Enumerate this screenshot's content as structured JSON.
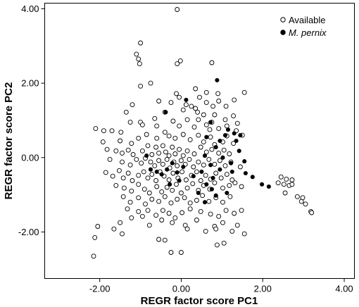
{
  "chart_data": {
    "type": "scatter",
    "xlabel": "REGR factor score PC1",
    "ylabel": "REGR factor score PC2",
    "xlim": [
      -3.35,
      4.25
    ],
    "ylim": [
      -3.25,
      4.15
    ],
    "x_ticks": [
      -2,
      0,
      2,
      4
    ],
    "y_ticks": [
      -2,
      0,
      2,
      4
    ],
    "x_tick_labels": [
      "-2.00",
      "0.00",
      "2.00",
      "4.00"
    ],
    "y_tick_labels": [
      "-2.00",
      "0.00",
      "2.00",
      "4.00"
    ],
    "grid": false,
    "legend_position": "top-right",
    "series": [
      {
        "name": "Available",
        "marker": "open-circle",
        "color": "#000000",
        "points": [
          [
            -0.1,
            3.98
          ],
          [
            -1.0,
            3.08
          ],
          [
            -1.1,
            2.78
          ],
          [
            -1.05,
            2.65
          ],
          [
            -1.02,
            2.52
          ],
          [
            -0.02,
            2.6
          ],
          [
            -0.1,
            2.52
          ],
          [
            0.75,
            2.55
          ],
          [
            -0.75,
            2.0
          ],
          [
            -1.0,
            1.92
          ],
          [
            -0.12,
            1.72
          ],
          [
            -0.05,
            1.62
          ],
          [
            0.35,
            1.85
          ],
          [
            0.45,
            1.62
          ],
          [
            0.62,
            1.75
          ],
          [
            0.9,
            1.72
          ],
          [
            1.55,
            1.75
          ],
          [
            -1.2,
            1.42
          ],
          [
            -0.55,
            1.52
          ],
          [
            -0.4,
            1.22
          ],
          [
            -0.25,
            1.48
          ],
          [
            0.05,
            1.28
          ],
          [
            0.12,
            1.42
          ],
          [
            0.25,
            1.38
          ],
          [
            0.4,
            1.22
          ],
          [
            0.62,
            1.48
          ],
          [
            0.78,
            1.38
          ],
          [
            0.92,
            1.52
          ],
          [
            1.1,
            1.38
          ],
          [
            1.3,
            1.55
          ],
          [
            0.42,
            1.02
          ],
          [
            0.55,
            1.15
          ],
          [
            0.35,
            1.32
          ],
          [
            0.82,
            1.15
          ],
          [
            1.08,
            1.02
          ],
          [
            1.28,
            1.12
          ],
          [
            1.38,
            0.92
          ],
          [
            0.75,
            0.95
          ],
          [
            -1.35,
            1.22
          ],
          [
            -1.25,
            0.95
          ],
          [
            -1.0,
            0.95
          ],
          [
            -0.95,
            0.88
          ],
          [
            -0.65,
            1.05
          ],
          [
            -0.6,
            0.85
          ],
          [
            -0.2,
            0.98
          ],
          [
            -0.05,
            0.85
          ],
          [
            0.15,
            1.02
          ],
          [
            0.32,
            0.82
          ],
          [
            0.62,
            0.88
          ],
          [
            0.7,
            0.75
          ],
          [
            0.92,
            0.78
          ],
          [
            1.12,
            0.85
          ],
          [
            1.35,
            0.72
          ],
          [
            1.5,
            0.6
          ],
          [
            -2.1,
            0.78
          ],
          [
            -1.9,
            0.72
          ],
          [
            -1.7,
            0.72
          ],
          [
            -1.48,
            0.68
          ],
          [
            -1.5,
            0.45
          ],
          [
            -1.22,
            0.38
          ],
          [
            -1.05,
            0.52
          ],
          [
            -0.85,
            0.62
          ],
          [
            -0.6,
            0.52
          ],
          [
            -0.4,
            0.68
          ],
          [
            -0.3,
            0.58
          ],
          [
            -0.15,
            0.52
          ],
          [
            0.05,
            0.62
          ],
          [
            0.22,
            0.48
          ],
          [
            0.42,
            0.6
          ],
          [
            0.55,
            0.42
          ],
          [
            0.72,
            0.55
          ],
          [
            0.82,
            0.35
          ],
          [
            1.02,
            0.42
          ],
          [
            1.12,
            0.58
          ],
          [
            1.28,
            0.38
          ],
          [
            -1.92,
            0.42
          ],
          [
            -1.82,
            0.22
          ],
          [
            -1.6,
            0.18
          ],
          [
            -1.45,
            0.12
          ],
          [
            -1.3,
            0.2
          ],
          [
            -1.18,
            0.08
          ],
          [
            -0.95,
            0.18
          ],
          [
            -0.82,
            0.32
          ],
          [
            -0.72,
            0.08
          ],
          [
            -0.62,
            0.28
          ],
          [
            -0.55,
            0.12
          ],
          [
            -0.45,
            0.32
          ],
          [
            -0.38,
            0.15
          ],
          [
            -0.3,
            0.05
          ],
          [
            -0.22,
            0.28
          ],
          [
            -0.15,
            0.1
          ],
          [
            -0.05,
            0.22
          ],
          [
            0.05,
            0.05
          ],
          [
            0.15,
            0.18
          ],
          [
            0.32,
            0.1
          ],
          [
            0.48,
            0.28
          ],
          [
            0.62,
            0.15
          ],
          [
            0.75,
            0.22
          ],
          [
            0.92,
            0.12
          ],
          [
            1.05,
            0.2
          ],
          [
            1.18,
            0.1
          ],
          [
            -1.75,
            -0.05
          ],
          [
            -1.45,
            -0.12
          ],
          [
            -1.25,
            -0.2
          ],
          [
            -1.1,
            -0.05
          ],
          [
            -0.98,
            -0.15
          ],
          [
            -0.88,
            -0.02
          ],
          [
            -0.75,
            -0.12
          ],
          [
            -0.65,
            -0.22
          ],
          [
            -0.55,
            -0.08
          ],
          [
            -0.45,
            -0.18
          ],
          [
            -0.35,
            -0.05
          ],
          [
            -0.28,
            -0.28
          ],
          [
            -0.18,
            -0.12
          ],
          [
            -0.1,
            -0.22
          ],
          [
            0.0,
            -0.08
          ],
          [
            0.1,
            -0.18
          ],
          [
            0.2,
            -0.05
          ],
          [
            0.3,
            -0.25
          ],
          [
            0.42,
            -0.12
          ],
          [
            0.55,
            -0.2
          ],
          [
            0.68,
            -0.05
          ],
          [
            0.82,
            -0.18
          ],
          [
            0.95,
            -0.08
          ],
          [
            1.08,
            -0.22
          ],
          [
            1.22,
            -0.12
          ],
          [
            1.45,
            -0.25
          ],
          [
            -1.85,
            -0.4
          ],
          [
            -1.68,
            -0.5
          ],
          [
            -1.52,
            -0.35
          ],
          [
            -1.42,
            -0.55
          ],
          [
            -1.3,
            -0.42
          ],
          [
            -1.2,
            -0.62
          ],
          [
            -1.05,
            -0.48
          ],
          [
            -0.92,
            -0.38
          ],
          [
            -0.82,
            -0.55
          ],
          [
            -0.72,
            -0.45
          ],
          [
            -0.62,
            -0.62
          ],
          [
            -0.52,
            -0.38
          ],
          [
            -0.42,
            -0.5
          ],
          [
            -0.3,
            -0.6
          ],
          [
            -0.2,
            -0.42
          ],
          [
            -0.08,
            -0.55
          ],
          [
            0.02,
            -0.38
          ],
          [
            0.12,
            -0.6
          ],
          [
            0.25,
            -0.48
          ],
          [
            0.38,
            -0.38
          ],
          [
            0.48,
            -0.62
          ],
          [
            0.6,
            -0.48
          ],
          [
            0.72,
            -0.58
          ],
          [
            0.85,
            -0.42
          ],
          [
            0.98,
            -0.55
          ],
          [
            1.12,
            -0.45
          ],
          [
            1.25,
            -0.6
          ],
          [
            -1.6,
            -0.75
          ],
          [
            -1.4,
            -0.82
          ],
          [
            -1.22,
            -0.9
          ],
          [
            -1.05,
            -0.72
          ],
          [
            -0.9,
            -0.85
          ],
          [
            -0.78,
            -0.95
          ],
          [
            -0.6,
            -0.78
          ],
          [
            -0.48,
            -0.92
          ],
          [
            -0.35,
            -0.8
          ],
          [
            -0.22,
            -0.88
          ],
          [
            -0.12,
            -0.72
          ],
          [
            0.0,
            -0.95
          ],
          [
            0.15,
            -0.82
          ],
          [
            0.28,
            -0.7
          ],
          [
            0.42,
            -0.88
          ],
          [
            0.55,
            -0.75
          ],
          [
            0.7,
            -0.85
          ],
          [
            0.82,
            -0.68
          ],
          [
            1.02,
            -0.82
          ],
          [
            1.18,
            -0.75
          ],
          [
            1.32,
            -0.68
          ],
          [
            1.48,
            -0.78
          ],
          [
            -1.42,
            -1.05
          ],
          [
            -1.25,
            -1.2
          ],
          [
            -1.05,
            -1.08
          ],
          [
            -0.88,
            -1.25
          ],
          [
            -0.72,
            -1.12
          ],
          [
            -0.55,
            -1.18
          ],
          [
            -0.4,
            -1.05
          ],
          [
            -0.25,
            -1.22
          ],
          [
            -0.1,
            -1.12
          ],
          [
            0.08,
            -1.08
          ],
          [
            0.22,
            -1.22
          ],
          [
            0.38,
            -1.15
          ],
          [
            0.52,
            -1.02
          ],
          [
            0.68,
            -1.18
          ],
          [
            0.85,
            -1.08
          ],
          [
            1.02,
            -1.2
          ],
          [
            1.2,
            -1.05
          ],
          [
            -1.32,
            -1.38
          ],
          [
            -1.05,
            -1.45
          ],
          [
            -0.82,
            -1.42
          ],
          [
            -0.62,
            -1.55
          ],
          [
            -0.45,
            -1.42
          ],
          [
            -0.3,
            -1.5
          ],
          [
            -0.15,
            -1.62
          ],
          [
            0.02,
            -1.48
          ],
          [
            0.22,
            -1.38
          ],
          [
            0.48,
            -1.45
          ],
          [
            0.72,
            -1.52
          ],
          [
            0.92,
            -1.58
          ],
          [
            1.1,
            -1.42
          ],
          [
            1.3,
            -1.5
          ],
          [
            1.48,
            -1.42
          ],
          [
            -1.5,
            -1.75
          ],
          [
            -1.22,
            -1.62
          ],
          [
            -0.95,
            -1.58
          ],
          [
            -0.78,
            -1.82
          ],
          [
            -0.48,
            -1.68
          ],
          [
            -0.22,
            -1.75
          ],
          [
            0.1,
            -1.82
          ],
          [
            0.38,
            -1.68
          ],
          [
            0.82,
            -1.85
          ],
          [
            1.02,
            -1.75
          ],
          [
            1.38,
            -1.82
          ],
          [
            -2.05,
            -1.85
          ],
          [
            -2.12,
            -2.15
          ],
          [
            -1.65,
            -1.92
          ],
          [
            -1.45,
            -2.05
          ],
          [
            -0.55,
            -2.2
          ],
          [
            -0.4,
            -2.22
          ],
          [
            0.15,
            -1.92
          ],
          [
            0.6,
            -1.98
          ],
          [
            0.85,
            -1.92
          ],
          [
            1.25,
            -1.98
          ],
          [
            1.55,
            -2.05
          ],
          [
            -2.15,
            -2.65
          ],
          [
            -0.25,
            -2.55
          ],
          [
            0.0,
            -2.55
          ],
          [
            0.88,
            -2.35
          ],
          [
            1.05,
            -2.3
          ],
          [
            2.45,
            -0.52
          ],
          [
            2.58,
            -0.58
          ],
          [
            2.72,
            -0.6
          ],
          [
            2.38,
            -0.68
          ],
          [
            2.52,
            -0.72
          ],
          [
            2.65,
            -0.75
          ],
          [
            2.72,
            -0.72
          ],
          [
            2.55,
            -0.95
          ],
          [
            2.85,
            -1.05
          ],
          [
            2.95,
            -1.18
          ],
          [
            3.05,
            -1.25
          ],
          [
            2.98,
            -1.08
          ],
          [
            3.18,
            -1.45
          ],
          [
            3.2,
            -1.48
          ]
        ]
      },
      {
        "name": "M. pernix",
        "marker": "filled-circle",
        "color": "#000000",
        "points": [
          [
            0.88,
            2.08
          ],
          [
            0.12,
            1.55
          ],
          [
            -0.38,
            1.22
          ],
          [
            0.72,
            0.95
          ],
          [
            0.62,
            0.55
          ],
          [
            0.85,
            0.28
          ],
          [
            1.15,
            0.75
          ],
          [
            1.3,
            0.65
          ],
          [
            1.45,
            0.6
          ],
          [
            1.08,
            0.6
          ],
          [
            0.95,
            0.45
          ],
          [
            1.35,
            0.45
          ],
          [
            0.58,
            0.05
          ],
          [
            1.42,
            0.18
          ],
          [
            1.02,
            0.0
          ],
          [
            1.22,
            -0.15
          ],
          [
            1.55,
            -0.1
          ],
          [
            0.72,
            -0.2
          ],
          [
            0.95,
            -0.32
          ],
          [
            -0.85,
            0.05
          ],
          [
            -0.75,
            -0.32
          ],
          [
            -0.6,
            -0.38
          ],
          [
            -0.48,
            -0.45
          ],
          [
            -0.35,
            -0.32
          ],
          [
            -0.22,
            -0.15
          ],
          [
            -0.1,
            -0.4
          ],
          [
            0.05,
            -0.25
          ],
          [
            -0.05,
            -0.62
          ],
          [
            -0.28,
            -0.72
          ],
          [
            0.3,
            -0.5
          ],
          [
            0.5,
            -0.38
          ],
          [
            0.62,
            -0.72
          ],
          [
            0.78,
            -0.55
          ],
          [
            0.75,
            -0.85
          ],
          [
            1.25,
            -0.38
          ],
          [
            1.58,
            -0.42
          ],
          [
            1.75,
            -0.52
          ],
          [
            1.98,
            -0.72
          ],
          [
            2.15,
            -0.78
          ],
          [
            1.12,
            -0.95
          ],
          [
            0.42,
            -0.95
          ],
          [
            0.85,
            -1.02
          ],
          [
            0.58,
            -1.2
          ]
        ]
      }
    ],
    "legend": [
      {
        "label": "Available",
        "marker": "open-circle",
        "italic": false
      },
      {
        "label": "M. pernix",
        "marker": "filled-circle",
        "italic": true
      }
    ]
  }
}
